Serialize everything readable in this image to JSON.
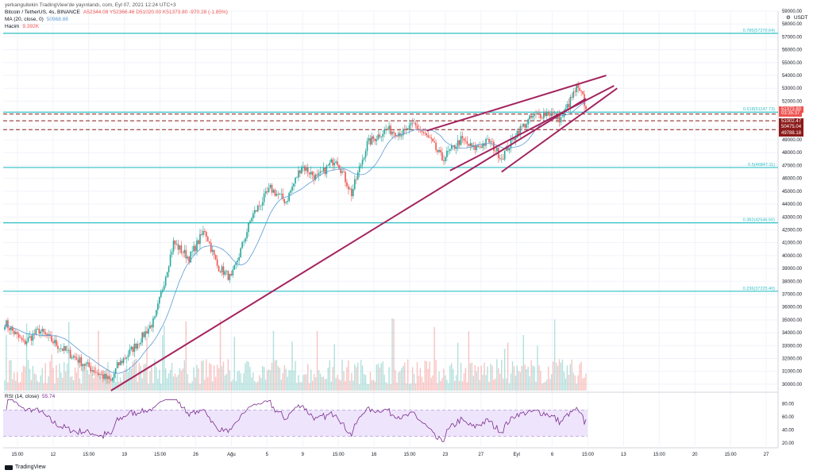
{
  "header": {
    "publisher": "yerkanguitekin TradingView'de yayınlandı, com, Eyl 07, 2021 12:24 UTC+3",
    "symbol": "Bitcoin / TetherUS, 4s, BINANCE",
    "ohlc": "A52344.08  Y52366.46  D51020.00  K51373.80  -970.28 (-1.85%)",
    "ma_label": "MA (20, close, 0)",
    "ma_value": "50968.88",
    "volume_label": "Hacim",
    "volume_value": "9.392K",
    "rsi_label": "RSI (14, close)",
    "rsi_value": "55.74",
    "currency": "USDT",
    "footer": "TradingView"
  },
  "colors": {
    "up": "#26a69a",
    "down": "#ef5350",
    "ma": "#5b9bd5",
    "fib": "#2fbfc4",
    "trend": "#a3245f",
    "resistance": "#8b1a1a",
    "rsi": "#7b2d8e",
    "rsi_band": "#eee4fb"
  },
  "chart_data": {
    "type": "candlestick",
    "ylim": [
      29500,
      59000
    ],
    "y_ticks": [
      30000,
      31000,
      32000,
      33000,
      34000,
      35000,
      36000,
      37000,
      38000,
      39000,
      40000,
      41000,
      42000,
      43000,
      44000,
      45000,
      46000,
      47000,
      48000,
      49000,
      50000,
      51000,
      52000,
      53000,
      54000,
      55000,
      56000,
      57000,
      58000,
      59000
    ],
    "x_ticks": [
      "15:00",
      "12",
      "15:00",
      "19",
      "15:00",
      "26",
      "Ağu",
      "5",
      "9",
      "15:00",
      "16",
      "15:00",
      "23",
      "27",
      "Eyl",
      "6",
      "15:00",
      "13",
      "15:00",
      "20",
      "15:00",
      "27"
    ],
    "anchors": [
      [
        0,
        34800
      ],
      [
        12,
        33200
      ],
      [
        22,
        34200
      ],
      [
        34,
        33000
      ],
      [
        48,
        31800
      ],
      [
        58,
        31000
      ],
      [
        68,
        30200
      ],
      [
        72,
        31400
      ],
      [
        85,
        33200
      ],
      [
        96,
        35000
      ],
      [
        108,
        41000
      ],
      [
        118,
        39800
      ],
      [
        128,
        42000
      ],
      [
        136,
        39200
      ],
      [
        145,
        38200
      ],
      [
        158,
        43000
      ],
      [
        170,
        45200
      ],
      [
        180,
        44200
      ],
      [
        190,
        47000
      ],
      [
        200,
        46000
      ],
      [
        212,
        47600
      ],
      [
        222,
        44800
      ],
      [
        232,
        48700
      ],
      [
        244,
        49800
      ],
      [
        255,
        49500
      ],
      [
        262,
        50200
      ],
      [
        272,
        49000
      ],
      [
        280,
        47500
      ],
      [
        292,
        49000
      ],
      [
        300,
        48300
      ],
      [
        310,
        48900
      ],
      [
        318,
        47600
      ],
      [
        328,
        49600
      ],
      [
        338,
        50800
      ],
      [
        348,
        51100
      ],
      [
        356,
        50600
      ],
      [
        366,
        53000
      ],
      [
        370,
        52300
      ],
      [
        372,
        51373.8
      ]
    ],
    "fib_levels": [
      {
        "label": "0.786(57270.64)",
        "price": 57270.64
      },
      {
        "label": "0.618(51147.73)",
        "price": 51147.73
      },
      {
        "label": "0.5(46847.11)",
        "price": 46847.11
      },
      {
        "label": "0.382(42546.50)",
        "price": 42546.5
      },
      {
        "label": "0.236(37225.40)",
        "price": 37225.4
      }
    ],
    "dashed_levels": [
      51000,
      50475.04,
      49788.18
    ],
    "price_badges": [
      {
        "text": "51373.80",
        "price": 51373.8,
        "color": "#ef5350"
      },
      {
        "text": "03:35:37",
        "price": 51050,
        "color": "#ef5350"
      },
      {
        "text": "51002.47",
        "price": 50440,
        "color": "#8b1a1a"
      },
      {
        "text": "50475.04",
        "price": 49980,
        "color": "#8b1a1a"
      },
      {
        "text": "49788.18",
        "price": 49480,
        "color": "#8b1a1a"
      }
    ],
    "rsi_ylim": [
      15,
      90
    ],
    "rsi_ticks": [
      20,
      40,
      60,
      80
    ],
    "rsi_band": [
      30,
      70
    ],
    "rsi_last": 55.74
  }
}
